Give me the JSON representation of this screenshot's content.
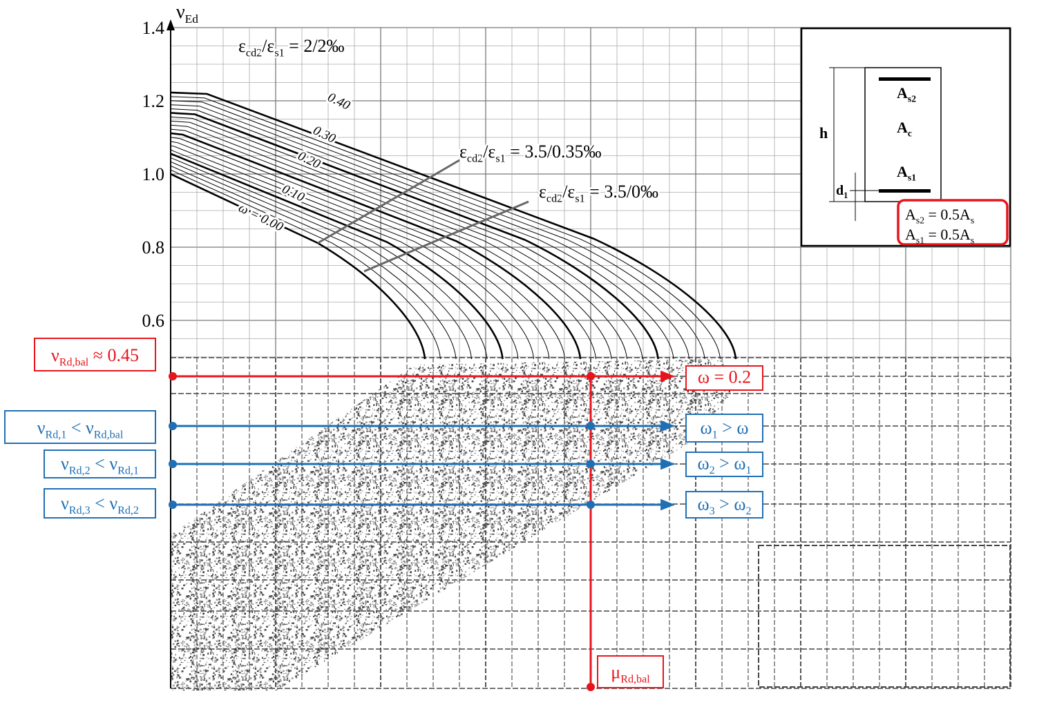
{
  "axis": {
    "label": [
      {
        "t": "ν"
      },
      {
        "t": "Ed",
        "sub": true
      }
    ],
    "ticks": [
      "1.4",
      "1.2",
      "1.0",
      "0.8",
      "0.6"
    ]
  },
  "curve_labels": {
    "omega": [
      "0.40",
      "0.30",
      "0.20",
      "0.10",
      "ω = 0.00"
    ],
    "strain": [
      [
        {
          "t": "ε"
        },
        {
          "t": "cd2",
          "sub": true
        },
        {
          "t": "/ε"
        },
        {
          "t": "s1",
          "sub": true
        },
        {
          "t": " = 2/2‰"
        }
      ],
      [
        {
          "t": "ε"
        },
        {
          "t": "cd2",
          "sub": true
        },
        {
          "t": "/ε"
        },
        {
          "t": "s1",
          "sub": true
        },
        {
          "t": " = 3.5/0.35‰"
        }
      ],
      [
        {
          "t": "ε"
        },
        {
          "t": "cd2",
          "sub": true
        },
        {
          "t": "/ε"
        },
        {
          "t": "s1",
          "sub": true
        },
        {
          "t": " = 3.5/0‰"
        }
      ]
    ]
  },
  "section": {
    "h": [
      {
        "t": "h"
      }
    ],
    "d1": [
      {
        "t": "d"
      },
      {
        "t": "1",
        "sub": true
      }
    ],
    "As2": [
      {
        "t": "A"
      },
      {
        "t": "s2",
        "sub": true
      }
    ],
    "Ac": [
      {
        "t": "A"
      },
      {
        "t": "c",
        "sub": true
      }
    ],
    "As1": [
      {
        "t": "A"
      },
      {
        "t": "s1",
        "sub": true
      }
    ],
    "ratios": [
      [
        {
          "t": "A"
        },
        {
          "t": "s2",
          "sub": true
        },
        {
          "t": " = 0.5A"
        },
        {
          "t": "s",
          "sub": true
        }
      ],
      [
        {
          "t": "A"
        },
        {
          "t": "s1",
          "sub": true
        },
        {
          "t": " = 0.5A"
        },
        {
          "t": "s",
          "sub": true
        }
      ]
    ]
  },
  "annotations": {
    "balance": [
      {
        "t": "ν"
      },
      {
        "t": "Rd,bal",
        "sub": true
      },
      {
        "t": " ≈ 0.45"
      }
    ],
    "omega": [
      {
        "t": "ω = 0.2"
      }
    ],
    "mu": [
      {
        "t": "μ"
      },
      {
        "t": "Rd,bal",
        "sub": true
      }
    ],
    "cases": [
      {
        "nu": [
          {
            "t": "ν"
          },
          {
            "t": "Rd,1",
            "sub": true
          },
          {
            "t": " < ν"
          },
          {
            "t": "Rd,bal",
            "sub": true
          }
        ],
        "omega": [
          {
            "t": "ω"
          },
          {
            "t": "1",
            "sub": true
          },
          {
            "t": " > ω"
          }
        ]
      },
      {
        "nu": [
          {
            "t": "ν"
          },
          {
            "t": "Rd,2",
            "sub": true
          },
          {
            "t": " < ν"
          },
          {
            "t": "Rd,1",
            "sub": true
          }
        ],
        "omega": [
          {
            "t": "ω"
          },
          {
            "t": "2",
            "sub": true
          },
          {
            "t": " > ω"
          },
          {
            "t": "1",
            "sub": true
          }
        ]
      },
      {
        "nu": [
          {
            "t": "ν"
          },
          {
            "t": "Rd,3",
            "sub": true
          },
          {
            "t": " < ν"
          },
          {
            "t": "Rd,2",
            "sub": true
          }
        ],
        "omega": [
          {
            "t": "ω"
          },
          {
            "t": "3",
            "sub": true
          },
          {
            "t": " > ω"
          },
          {
            "t": "2",
            "sub": true
          }
        ]
      }
    ]
  }
}
